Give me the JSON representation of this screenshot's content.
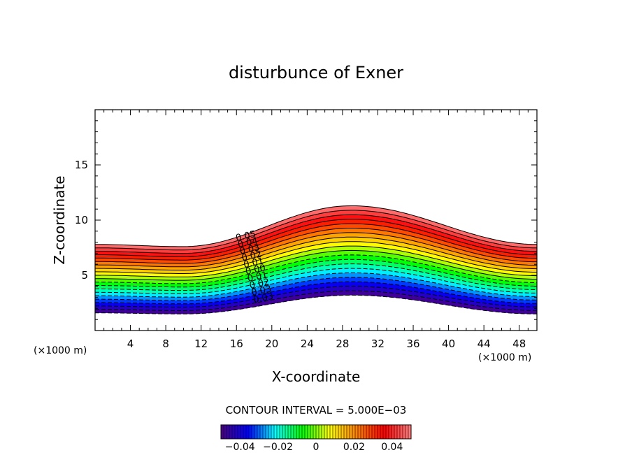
{
  "chart_data": {
    "type": "contour",
    "title": "disturbunce of Exner",
    "xlabel": "X-coordinate",
    "ylabel": "Z-coordinate",
    "x_unit_left": "(×1000 m)",
    "x_unit_right": "(×1000 m)",
    "xlim": [
      0,
      50
    ],
    "ylim": [
      0,
      20
    ],
    "x_ticks": [
      4,
      8,
      12,
      16,
      20,
      24,
      28,
      32,
      36,
      40,
      44,
      48
    ],
    "y_ticks": [
      5,
      10,
      15
    ],
    "contour_interval_text": "CONTOUR INTERVAL = 5.000E−03",
    "contour_interval": 0.005,
    "value_range": [
      -0.05,
      0.05
    ],
    "contour_labels": [
      "0.05",
      "0.04",
      "0.03",
      "0.02",
      "0.01",
      "0.00",
      "0.01",
      "0.02",
      "0.03",
      "0.03"
    ],
    "colorbar": {
      "ticks": [
        "-0.04",
        "-0.02",
        "0",
        "0.02",
        "0.04"
      ],
      "tick_values": [
        -0.04,
        -0.02,
        0,
        0.02,
        0.04
      ],
      "range": [
        -0.05,
        0.05
      ]
    },
    "colormap": [
      "#4b0082",
      "#0000ff",
      "#00ffff",
      "#00ff00",
      "#ffff00",
      "#ff8000",
      "#ff0000",
      "#ff8080"
    ],
    "field": {
      "top_z_at_x0": 7.8,
      "top_z_at_x10": 7.6,
      "top_z_at_x29": 11.3,
      "top_z_at_x50": 7.8,
      "bottom_z_at_x0": 1.6,
      "bottom_z_at_x10": 1.5,
      "bottom_z_at_x29": 3.2,
      "bottom_z_at_x50": 1.5
    }
  }
}
